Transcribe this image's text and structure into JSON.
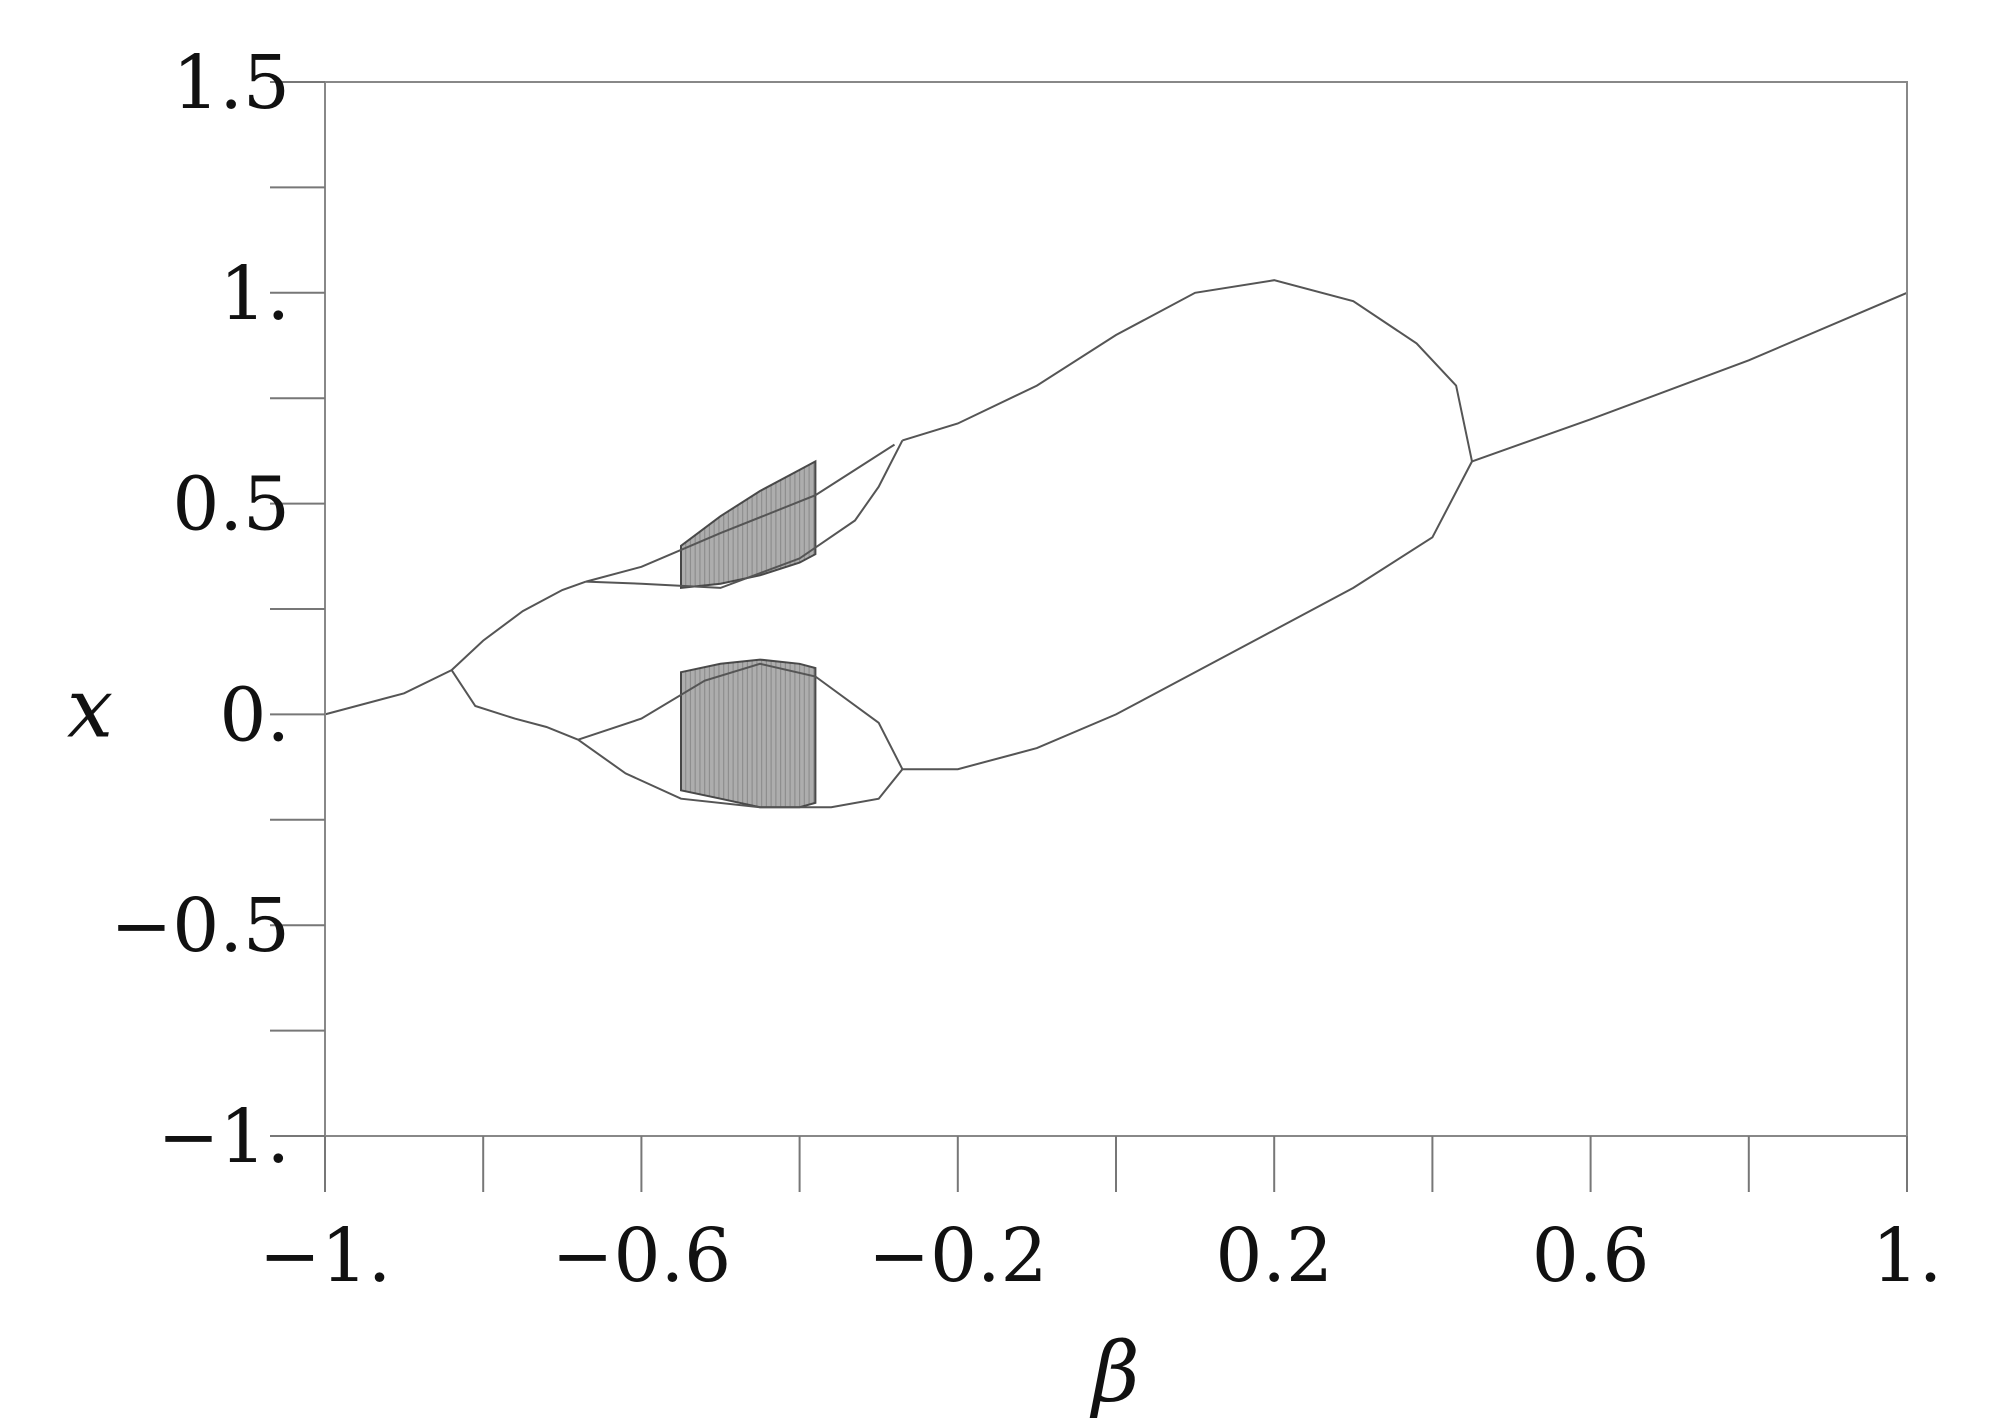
{
  "chart_data": {
    "type": "scatter",
    "xlabel": "β",
    "ylabel": "x",
    "xlim": [
      -1,
      1
    ],
    "ylim": [
      -1,
      1.5
    ],
    "x_ticks": [
      {
        "value": -1,
        "label": "−1."
      },
      {
        "value": -0.6,
        "label": "−0.6"
      },
      {
        "value": -0.2,
        "label": "−0.2"
      },
      {
        "value": 0.2,
        "label": "0.2"
      },
      {
        "value": 0.6,
        "label": "0.6"
      },
      {
        "value": 1,
        "label": "1."
      }
    ],
    "x_minor_ticks": [
      -0.8,
      -0.4,
      0,
      0.4,
      0.8
    ],
    "y_ticks": [
      {
        "value": -1,
        "label": "−1."
      },
      {
        "value": -0.5,
        "label": "−0.5"
      },
      {
        "value": 0,
        "label": "0."
      },
      {
        "value": 0.5,
        "label": "0.5"
      },
      {
        "value": 1,
        "label": "1."
      },
      {
        "value": 1.5,
        "label": "1.5"
      }
    ],
    "y_minor_ticks": [
      -0.75,
      -0.25,
      0.25,
      0.75,
      1.25
    ],
    "grid": false,
    "colors": {
      "curve": "#555555",
      "chaos": "#4a4a4a",
      "frame": "#888888"
    },
    "series": [
      {
        "kind": "line",
        "values": [
          [
            -1,
            0
          ],
          [
            -0.9,
            0.05
          ],
          [
            -0.84,
            0.105
          ]
        ]
      },
      {
        "kind": "line",
        "values": [
          [
            -0.84,
            0.105
          ],
          [
            -0.8,
            0.175
          ],
          [
            -0.75,
            0.245
          ],
          [
            -0.7,
            0.295
          ],
          [
            -0.67,
            0.315
          ]
        ]
      },
      {
        "kind": "line",
        "values": [
          [
            -0.84,
            0.105
          ],
          [
            -0.81,
            0.02
          ],
          [
            -0.76,
            -0.01
          ],
          [
            -0.72,
            -0.03
          ],
          [
            -0.68,
            -0.06
          ]
        ]
      },
      {
        "kind": "line",
        "values": [
          [
            -0.67,
            0.315
          ],
          [
            -0.6,
            0.35
          ],
          [
            -0.5,
            0.43
          ],
          [
            -0.38,
            0.52
          ],
          [
            -0.33,
            0.58
          ],
          [
            -0.28,
            0.64
          ]
        ]
      },
      {
        "kind": "line",
        "values": [
          [
            -0.67,
            0.315
          ],
          [
            -0.6,
            0.31
          ],
          [
            -0.5,
            0.3
          ],
          [
            -0.4,
            0.37
          ],
          [
            -0.33,
            0.46
          ],
          [
            -0.3,
            0.54
          ],
          [
            -0.27,
            0.65
          ]
        ]
      },
      {
        "kind": "line",
        "values": [
          [
            -0.68,
            -0.06
          ],
          [
            -0.6,
            -0.01
          ],
          [
            -0.52,
            0.08
          ],
          [
            -0.45,
            0.12
          ],
          [
            -0.38,
            0.09
          ],
          [
            -0.3,
            -0.02
          ],
          [
            -0.27,
            -0.13
          ]
        ]
      },
      {
        "kind": "line",
        "values": [
          [
            -0.68,
            -0.06
          ],
          [
            -0.62,
            -0.14
          ],
          [
            -0.55,
            -0.2
          ],
          [
            -0.45,
            -0.22
          ],
          [
            -0.36,
            -0.22
          ],
          [
            -0.3,
            -0.2
          ],
          [
            -0.27,
            -0.13
          ]
        ]
      },
      {
        "kind": "line",
        "values": [
          [
            -0.27,
            0.65
          ],
          [
            -0.2,
            0.69
          ],
          [
            -0.1,
            0.78
          ],
          [
            0,
            0.9
          ],
          [
            0.1,
            1.0
          ],
          [
            0.2,
            1.03
          ],
          [
            0.3,
            0.98
          ],
          [
            0.38,
            0.88
          ],
          [
            0.43,
            0.78
          ],
          [
            0.45,
            0.6
          ]
        ]
      },
      {
        "kind": "line",
        "values": [
          [
            -0.27,
            -0.13
          ],
          [
            -0.2,
            -0.13
          ],
          [
            -0.1,
            -0.08
          ],
          [
            0,
            0.0
          ],
          [
            0.1,
            0.1
          ],
          [
            0.2,
            0.2
          ],
          [
            0.3,
            0.3
          ],
          [
            0.4,
            0.42
          ],
          [
            0.45,
            0.6
          ]
        ]
      },
      {
        "kind": "line",
        "values": [
          [
            0.45,
            0.6
          ],
          [
            0.6,
            0.7
          ],
          [
            0.8,
            0.84
          ],
          [
            1,
            1.0
          ]
        ]
      },
      {
        "kind": "band",
        "upper": [
          [
            -0.55,
            0.4
          ],
          [
            -0.5,
            0.47
          ],
          [
            -0.45,
            0.53
          ],
          [
            -0.4,
            0.58
          ],
          [
            -0.38,
            0.6
          ]
        ],
        "lower": [
          [
            -0.55,
            0.3
          ],
          [
            -0.5,
            0.31
          ],
          [
            -0.45,
            0.33
          ],
          [
            -0.4,
            0.36
          ],
          [
            -0.38,
            0.38
          ]
        ]
      },
      {
        "kind": "band",
        "upper": [
          [
            -0.55,
            0.1
          ],
          [
            -0.5,
            0.12
          ],
          [
            -0.45,
            0.13
          ],
          [
            -0.4,
            0.12
          ],
          [
            -0.38,
            0.11
          ]
        ],
        "lower": [
          [
            -0.55,
            -0.18
          ],
          [
            -0.5,
            -0.2
          ],
          [
            -0.45,
            -0.22
          ],
          [
            -0.4,
            -0.22
          ],
          [
            -0.38,
            -0.21
          ]
        ]
      }
    ]
  }
}
